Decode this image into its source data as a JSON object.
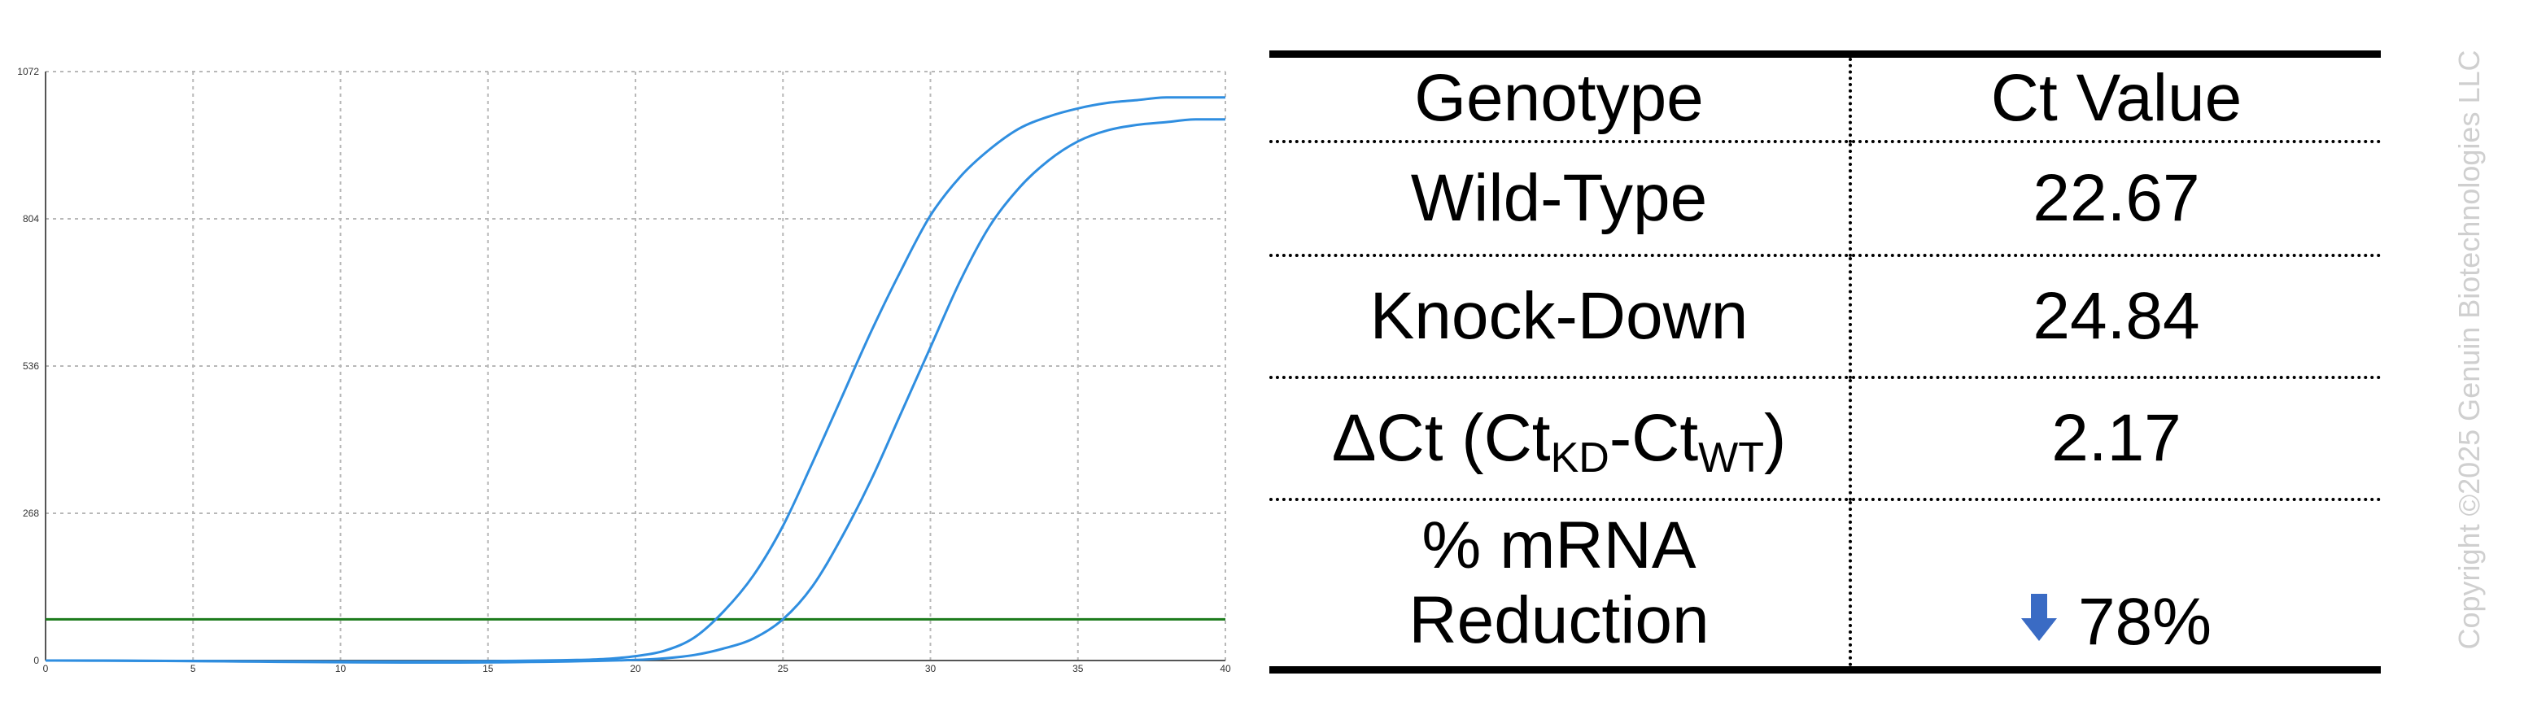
{
  "chart_data": {
    "type": "line",
    "xlim": [
      0,
      40
    ],
    "ylim": [
      0,
      1072
    ],
    "x_ticks": [
      0,
      5,
      10,
      15,
      20,
      25,
      30,
      35,
      40
    ],
    "y_ticks": [
      0,
      268,
      536,
      804,
      1072
    ],
    "grid": true,
    "threshold": 75,
    "series": [
      {
        "color": "#2f8ee0",
        "x": [
          0,
          18,
          19,
          20,
          21,
          22,
          23,
          24,
          25,
          26,
          27,
          28,
          29,
          30,
          31,
          32,
          33,
          34,
          35,
          36,
          37,
          38,
          39,
          40
        ],
        "y": [
          0,
          1,
          3,
          8,
          18,
          42,
          90,
          155,
          245,
          360,
          480,
          600,
          710,
          810,
          880,
          930,
          968,
          990,
          1005,
          1015,
          1020,
          1025,
          1025,
          1025
        ]
      },
      {
        "color": "#2f8ee0",
        "x": [
          0,
          20,
          21,
          22,
          23,
          24,
          25,
          26,
          27,
          28,
          29,
          30,
          31,
          32,
          33,
          34,
          35,
          36,
          37,
          38,
          39,
          40
        ],
        "y": [
          0,
          1,
          4,
          10,
          22,
          40,
          75,
          135,
          225,
          330,
          450,
          570,
          690,
          790,
          860,
          910,
          945,
          965,
          975,
          980,
          985,
          985
        ]
      }
    ],
    "threshold_color": "#1a7a1a"
  },
  "table": {
    "header": {
      "col1": "Genotype",
      "col2": "Ct Value"
    },
    "rows": {
      "wild_type": {
        "label": "Wild-Type",
        "value": "22.67"
      },
      "knock_down": {
        "label": "Knock-Down",
        "value": "24.84"
      },
      "delta_ct": {
        "prefix": "ΔCt (Ct",
        "sub1": "KD",
        "mid": "-Ct",
        "sub2": "WT",
        "suffix": ")",
        "value": "2.17"
      },
      "reduction": {
        "label_line1": "% mRNA",
        "label_line2": "Reduction",
        "value": "78%",
        "icon": "down-arrow-icon",
        "icon_color": "#3a6bc4"
      }
    }
  },
  "copyright": "Copyright ©2025 Genuin Biotechnologies LLC"
}
